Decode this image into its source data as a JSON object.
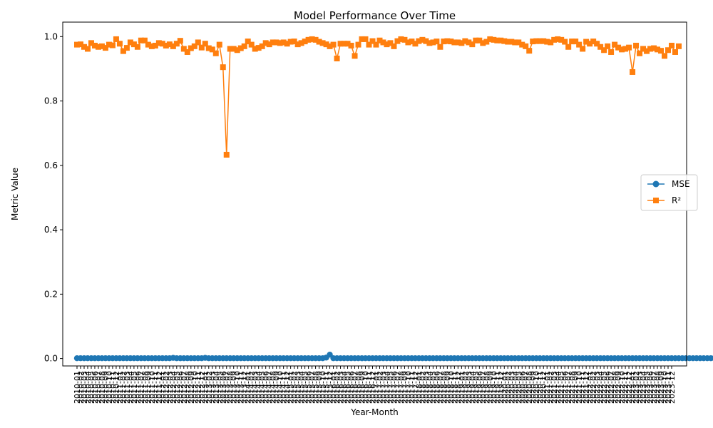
{
  "chart_data": {
    "type": "line",
    "title": "Model Performance Over Time",
    "xlabel": "Year-Month",
    "ylabel": "Metric Value",
    "ylim": [
      -0.023,
      1.045
    ],
    "yticks": [
      "0.0",
      "0.2",
      "0.4",
      "0.6",
      "0.8",
      "1.0"
    ],
    "ytick_values": [
      0.0,
      0.2,
      0.4,
      0.6,
      0.8,
      1.0
    ],
    "x_start": "2010-01",
    "x_end": "2023-12",
    "legend": "center-right",
    "grid": false,
    "series": [
      {
        "name": "MSE",
        "color": "#1f77b4",
        "marker": "circle",
        "values": [
          0.001,
          0.001,
          0.001,
          0.001,
          0.001,
          0.001,
          0.001,
          0.001,
          0.001,
          0.001,
          0.001,
          0.001,
          0.001,
          0.001,
          0.001,
          0.001,
          0.001,
          0.001,
          0.001,
          0.001,
          0.001,
          0.001,
          0.001,
          0.001,
          0.001,
          0.001,
          0.001,
          0.002,
          0.001,
          0.001,
          0.001,
          0.001,
          0.001,
          0.001,
          0.001,
          0.001,
          0.002,
          0.001,
          0.001,
          0.001,
          0.001,
          0.001,
          0.001,
          0.001,
          0.001,
          0.001,
          0.001,
          0.001,
          0.001,
          0.001,
          0.001,
          0.001,
          0.001,
          0.001,
          0.001,
          0.001,
          0.001,
          0.001,
          0.001,
          0.001,
          0.001,
          0.001,
          0.001,
          0.001,
          0.001,
          0.001,
          0.001,
          0.001,
          0.001,
          0.001,
          0.003,
          0.012,
          0.001,
          0.001,
          0.001,
          0.001,
          0.001,
          0.001,
          0.001,
          0.001,
          0.001,
          0.001,
          0.001,
          0.001,
          0.001,
          0.001,
          0.001,
          0.001,
          0.001,
          0.001,
          0.001,
          0.001,
          0.001,
          0.001,
          0.001,
          0.001,
          0.001,
          0.001,
          0.001,
          0.001,
          0.001,
          0.001,
          0.001,
          0.001,
          0.001,
          0.001,
          0.001,
          0.001,
          0.001,
          0.001,
          0.001,
          0.001,
          0.001,
          0.001,
          0.001,
          0.001,
          0.001,
          0.001,
          0.001,
          0.001,
          0.001,
          0.001,
          0.001,
          0.001,
          0.001,
          0.001,
          0.001,
          0.001,
          0.001,
          0.001,
          0.001,
          0.001,
          0.001,
          0.001,
          0.001,
          0.001,
          0.001,
          0.001,
          0.001,
          0.001,
          0.001,
          0.001,
          0.001,
          0.001,
          0.001,
          0.001,
          0.001,
          0.001,
          0.001,
          0.001,
          0.001,
          0.001,
          0.001,
          0.001,
          0.001,
          0.001,
          0.001,
          0.001,
          0.001,
          0.001,
          0.001,
          0.001,
          0.001,
          0.001,
          0.001,
          0.001,
          0.001,
          0.001,
          0.001,
          0.001,
          0.001,
          0.001,
          0.001,
          0.001,
          0.001,
          0.001,
          0.001,
          0.001,
          0.001,
          0.001,
          0.001,
          0.001,
          0.001,
          0.001,
          0.001,
          0.001,
          0.001,
          0.001,
          0.001,
          0.001,
          0.001,
          0.001,
          0.001,
          0.001,
          0.001,
          0.001,
          0.001,
          0.001,
          0.001,
          0.001,
          0.001,
          0.001,
          0.001,
          0.001,
          0.001,
          0.001,
          0.001,
          0.001,
          0.001,
          0.001,
          0.001,
          0.001,
          0.001,
          0.001,
          0.001,
          0.001,
          0.001,
          0.001,
          0.001,
          0.001,
          0.001,
          0.001,
          0.001,
          0.001,
          0.001,
          0.001,
          0.001,
          0.001,
          0.001,
          0.001,
          0.001,
          0.001,
          0.001,
          0.001,
          0.001,
          0.001,
          0.001,
          0.001,
          0.001,
          0.001,
          0.001,
          0.001,
          0.001,
          0.001,
          0.001,
          0.001,
          0.001,
          0.001,
          0.001,
          0.001,
          0.001,
          0.001,
          0.001,
          0.001,
          0.001,
          0.001,
          0.001,
          0.001,
          0.001,
          0.001,
          0.001,
          0.001,
          0.001,
          0.001,
          0.001,
          0.001,
          0.001,
          0.001,
          0.001,
          0.001,
          0.001,
          0.001,
          0.001,
          0.001,
          0.001,
          0.001,
          0.001,
          0.001,
          0.001,
          0.001,
          0.001,
          0.001,
          0.001,
          0.001,
          0.001,
          0.001,
          0.001,
          0.001,
          0.001,
          0.001,
          0.001,
          0.001,
          0.001,
          0.001,
          0.001,
          0.001,
          0.001,
          0.001,
          0.001,
          0.001,
          0.001,
          0.001,
          0.001,
          0.001,
          0.001,
          0.001,
          0.001,
          0.001,
          0.001,
          0.001,
          0.001,
          0.001,
          0.001,
          0.001,
          0.001,
          0.001,
          0.001,
          0.004,
          0.004,
          0.003,
          0.001,
          0.001,
          0.001,
          0.001,
          0.001,
          0.001,
          0.001,
          0.001,
          0.001,
          0.002,
          0.001,
          0.001,
          0.001,
          0.001,
          0.001,
          0.001
        ]
      },
      {
        "name": "R²",
        "color": "#ff7f0e",
        "marker": "square",
        "values": [
          0.975,
          0.976,
          0.968,
          0.962,
          0.98,
          0.972,
          0.968,
          0.97,
          0.965,
          0.975,
          0.973,
          0.992,
          0.978,
          0.955,
          0.965,
          0.982,
          0.976,
          0.968,
          0.988,
          0.988,
          0.975,
          0.97,
          0.972,
          0.98,
          0.978,
          0.972,
          0.976,
          0.97,
          0.978,
          0.987,
          0.962,
          0.952,
          0.964,
          0.97,
          0.982,
          0.966,
          0.978,
          0.964,
          0.96,
          0.948,
          0.975,
          0.905,
          0.633,
          0.962,
          0.962,
          0.958,
          0.964,
          0.97,
          0.985,
          0.975,
          0.962,
          0.965,
          0.97,
          0.98,
          0.976,
          0.982,
          0.982,
          0.98,
          0.982,
          0.978,
          0.984,
          0.985,
          0.976,
          0.98,
          0.985,
          0.99,
          0.992,
          0.99,
          0.984,
          0.98,
          0.976,
          0.97,
          0.975,
          0.932,
          0.978,
          0.978,
          0.978,
          0.972,
          0.94,
          0.975,
          0.992,
          0.992,
          0.975,
          0.986,
          0.975,
          0.988,
          0.982,
          0.976,
          0.98,
          0.97,
          0.986,
          0.992,
          0.99,
          0.982,
          0.985,
          0.978,
          0.986,
          0.99,
          0.986,
          0.98,
          0.982,
          0.985,
          0.968,
          0.985,
          0.986,
          0.985,
          0.982,
          0.982,
          0.98,
          0.986,
          0.982,
          0.976,
          0.988,
          0.988,
          0.98,
          0.984,
          0.992,
          0.99,
          0.988,
          0.988,
          0.986,
          0.984,
          0.984,
          0.982,
          0.982,
          0.975,
          0.97,
          0.956,
          0.985,
          0.986,
          0.986,
          0.986,
          0.984,
          0.982,
          0.99,
          0.992,
          0.99,
          0.984,
          0.968,
          0.985,
          0.985,
          0.975,
          0.962,
          0.984,
          0.978,
          0.985,
          0.978,
          0.968,
          0.958,
          0.97,
          0.952,
          0.975,
          0.966,
          0.96,
          0.962,
          0.966,
          0.89,
          0.972,
          0.948,
          0.962,
          0.955,
          0.962,
          0.964,
          0.96,
          0.956,
          0.94,
          0.958,
          0.972,
          0.952,
          0.97
        ]
      }
    ]
  }
}
